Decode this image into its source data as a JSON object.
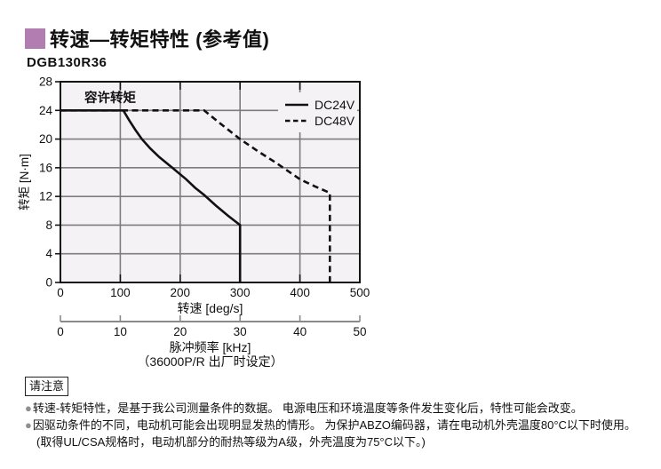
{
  "header": {
    "title": "转速—转矩特性 (参考值)",
    "model": "DGB130R36"
  },
  "colors": {
    "accent_square": "#b27eb2",
    "plot_bg": "#f5f2f5",
    "grid": "#7d7d7d",
    "frame": "#141414",
    "line": "#111111",
    "secondary_axis": "#8a8a8a",
    "bullet": "#8f8f8f"
  },
  "chart_data": {
    "type": "line",
    "xlabel": "转速 [deg/s]",
    "ylabel": "转矩 [N·m]",
    "x2label": "脉冲频率 [kHz]",
    "x2note": "（36000P/R 出厂时设定）",
    "annotation": "容许转矩",
    "legend_position": "top-right",
    "xlim": [
      0,
      500
    ],
    "ylim": [
      0,
      28
    ],
    "xticks": [
      0,
      100,
      200,
      300,
      400,
      500
    ],
    "yticks": [
      0,
      4,
      8,
      12,
      16,
      20,
      24,
      28
    ],
    "x2ticks": [
      0,
      10,
      20,
      30,
      40,
      50
    ],
    "grid": true,
    "series": [
      {
        "name": "DC24V",
        "style": "solid",
        "points": [
          [
            0,
            24
          ],
          [
            105,
            24
          ],
          [
            115,
            22.6
          ],
          [
            125,
            21.3
          ],
          [
            136,
            20
          ],
          [
            150,
            18.7
          ],
          [
            165,
            17.5
          ],
          [
            187,
            16
          ],
          [
            210,
            14.4
          ],
          [
            225,
            13.2
          ],
          [
            240,
            12.2
          ],
          [
            260,
            10.7
          ],
          [
            280,
            9.3
          ],
          [
            300,
            8
          ],
          [
            300,
            0
          ]
        ]
      },
      {
        "name": "DC48V",
        "style": "dashed",
        "points": [
          [
            0,
            24
          ],
          [
            240,
            24
          ],
          [
            265,
            22.3
          ],
          [
            300,
            20
          ],
          [
            330,
            18.3
          ],
          [
            360,
            16.7
          ],
          [
            400,
            14.4
          ],
          [
            425,
            13.4
          ],
          [
            450,
            12.5
          ],
          [
            450,
            0
          ]
        ]
      }
    ]
  },
  "notes": {
    "box_label": "请注意",
    "items": [
      "转速-转矩特性，是基于我公司测量条件的数据。 电源电压和环境温度等条件发生变化后，特性可能会改变。",
      "因驱动条件的不同，电动机可能会出现明显发热的情形。 为保护ABZO编码器，请在电动机外壳温度80°C以下时使用。"
    ],
    "continuation": "(取得UL/CSA规格时，电动机部分的耐热等级为A级，外壳温度为75°C以下。)",
    "bullet_glyph": "●"
  }
}
